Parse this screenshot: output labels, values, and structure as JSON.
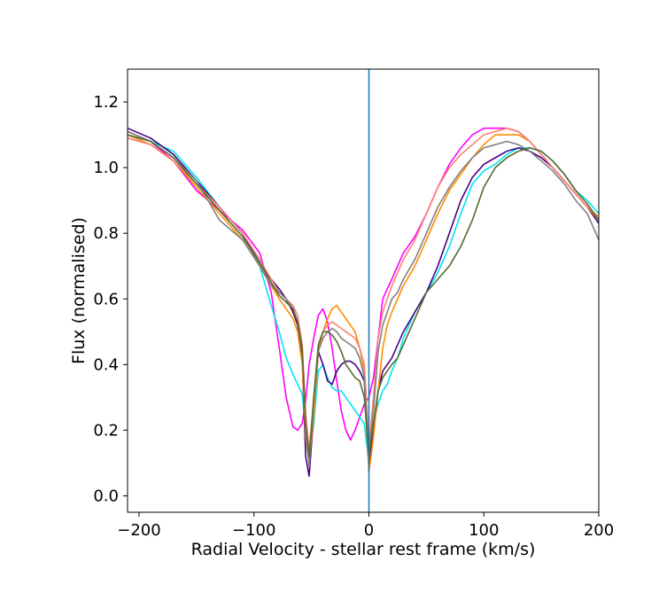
{
  "chart_data": {
    "type": "line",
    "title": "",
    "xlabel": "Radial Velocity - stellar rest frame (km/s)",
    "ylabel": "Flux (normalised)",
    "xlim": [
      -210,
      200
    ],
    "ylim": [
      -0.05,
      1.3
    ],
    "x_ticks": [
      -200,
      -100,
      0,
      100,
      200
    ],
    "x_tick_labels": [
      "−200",
      "−100",
      "0",
      "100",
      "200"
    ],
    "y_ticks": [
      0.0,
      0.2,
      0.4,
      0.6,
      0.8,
      1.0,
      1.2
    ],
    "y_tick_labels": [
      "0.0",
      "0.2",
      "0.4",
      "0.6",
      "0.8",
      "1.0",
      "1.2"
    ],
    "grid": false,
    "vertical_line": {
      "x": 0,
      "color": "#1f77b4"
    },
    "series": [
      {
        "color": "#ff00ff",
        "x": [
          -210,
          -190,
          -170,
          -150,
          -130,
          -110,
          -95,
          -85,
          -78,
          -72,
          -66,
          -62,
          -58,
          -55,
          -52,
          -48,
          -44,
          -40,
          -36,
          -32,
          -28,
          -24,
          -20,
          -16,
          -12,
          -8,
          -4,
          0,
          4,
          8,
          12,
          16,
          20,
          25,
          30,
          40,
          50,
          60,
          70,
          80,
          90,
          100,
          110,
          120,
          130,
          140,
          150,
          160,
          170,
          180,
          190,
          200
        ],
        "y": [
          1.11,
          1.08,
          1.02,
          0.93,
          0.87,
          0.81,
          0.74,
          0.62,
          0.45,
          0.3,
          0.21,
          0.2,
          0.22,
          0.29,
          0.4,
          0.48,
          0.55,
          0.57,
          0.53,
          0.45,
          0.35,
          0.26,
          0.2,
          0.17,
          0.2,
          0.24,
          0.28,
          0.3,
          0.36,
          0.48,
          0.6,
          0.63,
          0.66,
          0.7,
          0.74,
          0.79,
          0.86,
          0.94,
          1.01,
          1.06,
          1.1,
          1.12,
          1.12,
          1.12,
          1.11,
          1.08,
          1.04,
          1.0,
          0.96,
          0.92,
          0.88,
          0.84
        ]
      },
      {
        "color": "#00e5ee",
        "x": [
          -210,
          -190,
          -170,
          -150,
          -130,
          -110,
          -95,
          -85,
          -78,
          -72,
          -66,
          -62,
          -58,
          -55,
          -52,
          -48,
          -44,
          -40,
          -36,
          -32,
          -28,
          -24,
          -20,
          -16,
          -12,
          -8,
          -4,
          0,
          4,
          8,
          12,
          16,
          20,
          25,
          30,
          40,
          50,
          60,
          70,
          80,
          90,
          100,
          110,
          120,
          130,
          140,
          150,
          160,
          170,
          180,
          190,
          200
        ],
        "y": [
          1.1,
          1.08,
          1.05,
          0.97,
          0.88,
          0.8,
          0.7,
          0.58,
          0.5,
          0.42,
          0.37,
          0.34,
          0.31,
          0.2,
          0.12,
          0.22,
          0.38,
          0.4,
          0.36,
          0.33,
          0.32,
          0.32,
          0.3,
          0.28,
          0.26,
          0.24,
          0.22,
          0.1,
          0.22,
          0.28,
          0.32,
          0.34,
          0.38,
          0.42,
          0.48,
          0.56,
          0.62,
          0.68,
          0.76,
          0.86,
          0.95,
          0.99,
          1.01,
          1.04,
          1.06,
          1.06,
          1.05,
          1.02,
          0.98,
          0.93,
          0.9,
          0.86
        ]
      },
      {
        "color": "#4b0082",
        "x": [
          -210,
          -190,
          -170,
          -150,
          -130,
          -110,
          -95,
          -85,
          -78,
          -72,
          -66,
          -62,
          -58,
          -55,
          -52,
          -48,
          -44,
          -40,
          -36,
          -32,
          -28,
          -24,
          -20,
          -16,
          -12,
          -8,
          -4,
          0,
          4,
          8,
          12,
          16,
          20,
          25,
          30,
          40,
          50,
          60,
          70,
          80,
          90,
          100,
          110,
          120,
          130,
          140,
          150,
          160,
          170,
          180,
          190,
          200
        ],
        "y": [
          1.12,
          1.09,
          1.04,
          0.96,
          0.88,
          0.8,
          0.71,
          0.66,
          0.63,
          0.6,
          0.56,
          0.52,
          0.42,
          0.12,
          0.06,
          0.25,
          0.44,
          0.4,
          0.35,
          0.34,
          0.38,
          0.4,
          0.41,
          0.41,
          0.4,
          0.38,
          0.35,
          0.08,
          0.2,
          0.32,
          0.38,
          0.4,
          0.42,
          0.46,
          0.5,
          0.56,
          0.62,
          0.7,
          0.8,
          0.9,
          0.97,
          1.01,
          1.03,
          1.05,
          1.06,
          1.05,
          1.03,
          1.0,
          0.96,
          0.92,
          0.88,
          0.83
        ]
      },
      {
        "color": "#ff8c00",
        "x": [
          -210,
          -190,
          -170,
          -150,
          -130,
          -110,
          -95,
          -85,
          -78,
          -72,
          -66,
          -62,
          -58,
          -55,
          -52,
          -48,
          -44,
          -40,
          -36,
          -32,
          -28,
          -24,
          -20,
          -16,
          -12,
          -8,
          -4,
          0,
          4,
          8,
          12,
          16,
          20,
          25,
          30,
          40,
          50,
          60,
          70,
          80,
          90,
          100,
          110,
          120,
          130,
          140,
          150,
          160,
          170,
          180,
          190,
          200
        ],
        "y": [
          1.1,
          1.07,
          1.02,
          0.94,
          0.86,
          0.78,
          0.7,
          0.64,
          0.6,
          0.57,
          0.54,
          0.5,
          0.4,
          0.18,
          0.1,
          0.25,
          0.44,
          0.5,
          0.54,
          0.57,
          0.58,
          0.56,
          0.54,
          0.52,
          0.5,
          0.45,
          0.38,
          0.07,
          0.18,
          0.32,
          0.45,
          0.52,
          0.56,
          0.6,
          0.64,
          0.7,
          0.78,
          0.86,
          0.93,
          0.98,
          1.03,
          1.07,
          1.1,
          1.1,
          1.1,
          1.08,
          1.04,
          1.0,
          0.96,
          0.92,
          0.88,
          0.84
        ]
      },
      {
        "color": "#fa8072",
        "x": [
          -210,
          -190,
          -170,
          -150,
          -130,
          -110,
          -95,
          -85,
          -78,
          -72,
          -66,
          -62,
          -58,
          -55,
          -52,
          -48,
          -44,
          -40,
          -36,
          -32,
          -28,
          -24,
          -20,
          -16,
          -12,
          -8,
          -4,
          0,
          4,
          8,
          12,
          16,
          20,
          25,
          30,
          40,
          50,
          60,
          70,
          80,
          90,
          100,
          110,
          120,
          130,
          140,
          150,
          160,
          170,
          180,
          190,
          200
        ],
        "y": [
          1.09,
          1.07,
          1.02,
          0.95,
          0.88,
          0.8,
          0.72,
          0.66,
          0.62,
          0.6,
          0.58,
          0.55,
          0.46,
          0.25,
          0.14,
          0.28,
          0.46,
          0.5,
          0.52,
          0.53,
          0.52,
          0.51,
          0.5,
          0.49,
          0.48,
          0.45,
          0.4,
          0.15,
          0.3,
          0.48,
          0.56,
          0.6,
          0.64,
          0.68,
          0.72,
          0.78,
          0.86,
          0.94,
          1.0,
          1.04,
          1.07,
          1.1,
          1.11,
          1.12,
          1.11,
          1.08,
          1.04,
          1.0,
          0.96,
          0.92,
          0.88,
          0.85
        ]
      },
      {
        "color": "#808080",
        "x": [
          -210,
          -190,
          -170,
          -150,
          -130,
          -110,
          -95,
          -85,
          -78,
          -72,
          -66,
          -62,
          -58,
          -55,
          -52,
          -48,
          -44,
          -40,
          -36,
          -32,
          -28,
          -24,
          -20,
          -16,
          -12,
          -8,
          -4,
          0,
          4,
          8,
          12,
          16,
          20,
          25,
          30,
          40,
          50,
          60,
          70,
          80,
          90,
          100,
          110,
          120,
          130,
          140,
          150,
          160,
          170,
          180,
          190,
          200
        ],
        "y": [
          1.11,
          1.08,
          1.03,
          0.96,
          0.84,
          0.78,
          0.7,
          0.64,
          0.62,
          0.6,
          0.57,
          0.53,
          0.44,
          0.2,
          0.09,
          0.3,
          0.44,
          0.48,
          0.5,
          0.51,
          0.5,
          0.48,
          0.47,
          0.46,
          0.45,
          0.42,
          0.36,
          0.13,
          0.26,
          0.44,
          0.52,
          0.56,
          0.6,
          0.62,
          0.66,
          0.72,
          0.8,
          0.88,
          0.94,
          0.99,
          1.03,
          1.06,
          1.07,
          1.08,
          1.07,
          1.05,
          1.02,
          0.99,
          0.95,
          0.9,
          0.86,
          0.78
        ]
      },
      {
        "color": "#556b2f",
        "x": [
          -210,
          -190,
          -170,
          -150,
          -130,
          -110,
          -95,
          -85,
          -78,
          -72,
          -66,
          -62,
          -58,
          -55,
          -52,
          -48,
          -44,
          -40,
          -36,
          -32,
          -28,
          -24,
          -20,
          -16,
          -12,
          -8,
          -4,
          0,
          4,
          8,
          12,
          16,
          20,
          25,
          30,
          40,
          50,
          60,
          70,
          80,
          90,
          100,
          110,
          120,
          130,
          140,
          150,
          160,
          170,
          180,
          190,
          200
        ],
        "y": [
          1.1,
          1.08,
          1.03,
          0.95,
          0.87,
          0.79,
          0.71,
          0.65,
          0.61,
          0.59,
          0.57,
          0.53,
          0.45,
          0.22,
          0.12,
          0.3,
          0.46,
          0.5,
          0.5,
          0.49,
          0.47,
          0.44,
          0.4,
          0.38,
          0.36,
          0.35,
          0.3,
          0.12,
          0.22,
          0.32,
          0.36,
          0.38,
          0.4,
          0.42,
          0.46,
          0.54,
          0.62,
          0.66,
          0.7,
          0.76,
          0.84,
          0.94,
          1.0,
          1.03,
          1.05,
          1.06,
          1.05,
          1.02,
          0.98,
          0.93,
          0.89,
          0.84
        ]
      }
    ]
  }
}
